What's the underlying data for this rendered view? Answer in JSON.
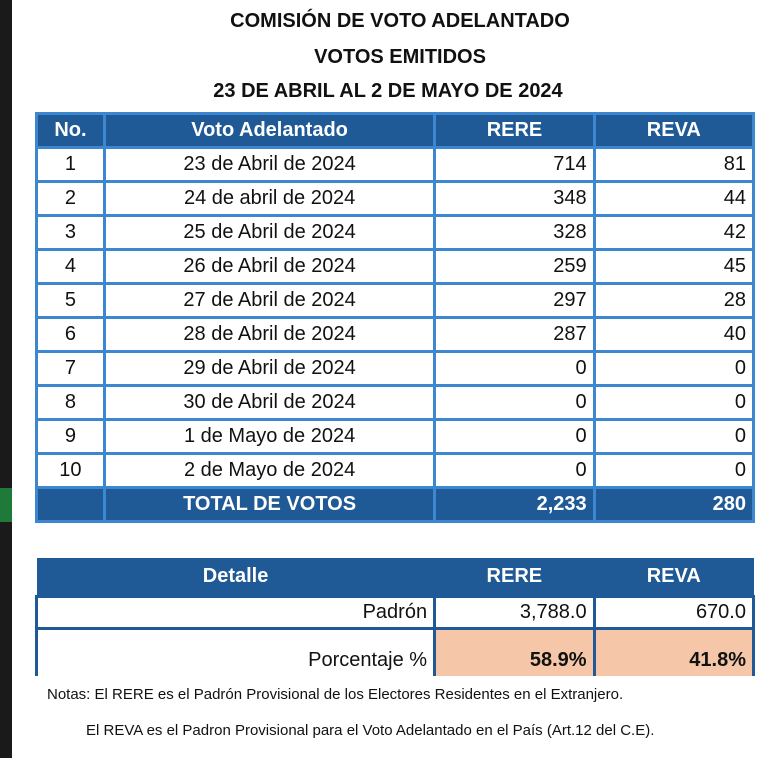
{
  "title": [
    "COMISIÓN DE VOTO ADELANTADO",
    "VOTOS EMITIDOS",
    "23 DE ABRIL  AL 2 DE MAYO DE 2024"
  ],
  "table": {
    "headers": [
      "No.",
      "Voto Adelantado",
      "RERE",
      "REVA"
    ],
    "rows": [
      [
        "1",
        "23 de Abril de 2024",
        "714",
        "81"
      ],
      [
        "2",
        "24 de abril de 2024",
        "348",
        "44"
      ],
      [
        "3",
        "25 de Abril de 2024",
        "328",
        "42"
      ],
      [
        "4",
        "26 de Abril de 2024",
        "259",
        "45"
      ],
      [
        "5",
        "27 de Abril de 2024",
        "297",
        "28"
      ],
      [
        "6",
        "28 de Abril de 2024",
        "287",
        "40"
      ],
      [
        "7",
        "29 de Abril de 2024",
        "0",
        "0"
      ],
      [
        "8",
        "30 de Abril de 2024",
        "0",
        "0"
      ],
      [
        "9",
        "1 de Mayo de 2024",
        "0",
        "0"
      ],
      [
        "10",
        "2 de Mayo de 2024",
        "0",
        "0"
      ]
    ],
    "total": {
      "label": "TOTAL DE VOTOS",
      "rere": "2,233",
      "reva": "280"
    }
  },
  "detail": {
    "headers": [
      "Detalle",
      "RERE",
      "REVA"
    ],
    "padron": {
      "label": "Padrón",
      "rere": "3,788.0",
      "reva": "670.0"
    },
    "porcentaje": {
      "label": "Porcentaje %",
      "rere": "58.9%",
      "reva": "41.8%"
    }
  },
  "notes": [
    "Notas: El RERE es el Padrón Provisional  de los Electores Residentes en el Extranjero.",
    "El REVA es el Padron Provisional para el Voto Adelantado en el País (Art.12 del C.E)."
  ],
  "colors": {
    "header": "#1f5a96",
    "border": "#3d86d0",
    "highlight": "#f5c6a8"
  }
}
